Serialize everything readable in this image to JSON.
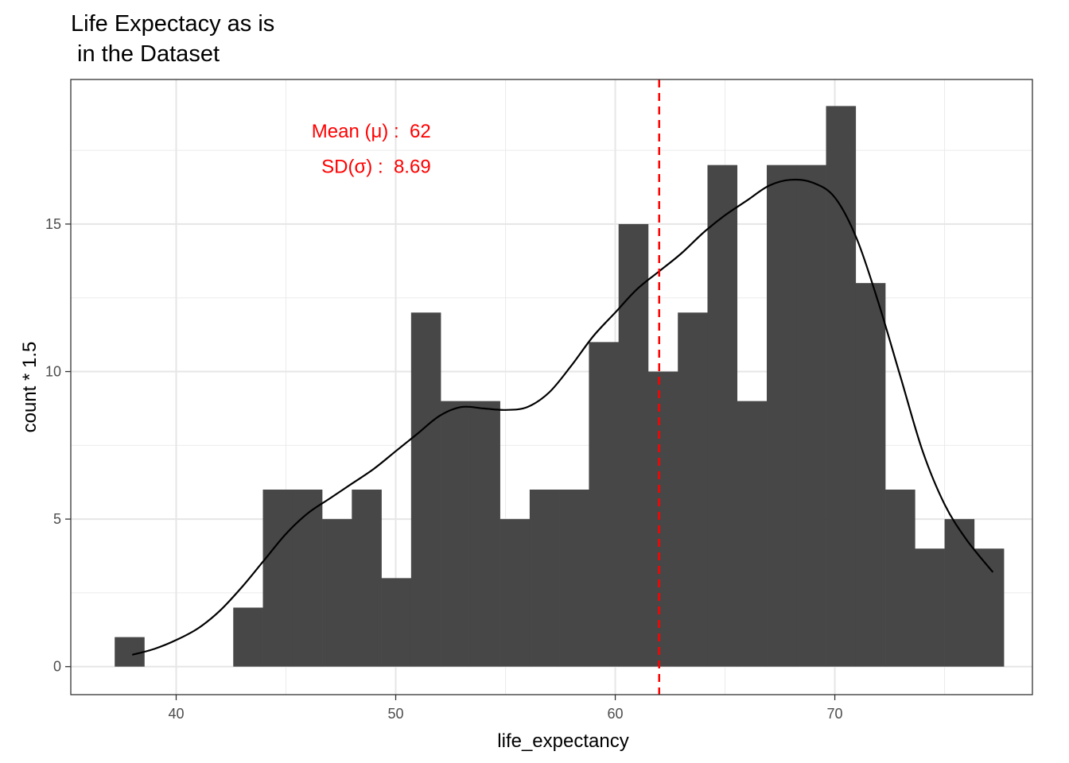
{
  "chart_data": {
    "type": "histogram",
    "title": [
      "Life Expectacy as is",
      " in the Dataset"
    ],
    "xlabel": "life_expectancy",
    "ylabel": "count * 1.5",
    "xlim": [
      35.2,
      79.0
    ],
    "ylim": [
      -0.95,
      19.9
    ],
    "x_ticks": [
      40,
      50,
      60,
      70
    ],
    "x_minor_ticks": [
      45,
      55,
      65,
      75
    ],
    "y_ticks": [
      0,
      5,
      10,
      15
    ],
    "y_minor_ticks": [
      2.5,
      7.5,
      12.5,
      17.5
    ],
    "grid": true,
    "bar_color": "#474747",
    "bins": {
      "start": 37.2,
      "width": 1.35,
      "counts": [
        1,
        0,
        0,
        0,
        2,
        6,
        6,
        5,
        6,
        3,
        12,
        9,
        9,
        5,
        6,
        6,
        11,
        15,
        10,
        12,
        17,
        9,
        17,
        17,
        19,
        13,
        6,
        4,
        5,
        4
      ]
    },
    "density_curve": {
      "color": "#000000",
      "x": [
        38.0,
        39.0,
        40.0,
        41.0,
        42.0,
        43.0,
        44.0,
        45.0,
        46.0,
        47.0,
        48.0,
        49.0,
        50.0,
        51.0,
        52.0,
        53.0,
        54.0,
        55.0,
        56.0,
        57.0,
        58.0,
        59.0,
        60.0,
        61.0,
        62.0,
        63.0,
        64.0,
        65.0,
        66.0,
        67.0,
        68.0,
        69.0,
        70.0,
        71.0,
        72.0,
        73.0,
        74.0,
        75.0,
        76.0,
        77.2
      ],
      "y": [
        0.4,
        0.6,
        0.9,
        1.3,
        1.9,
        2.7,
        3.6,
        4.5,
        5.2,
        5.7,
        6.2,
        6.7,
        7.3,
        7.9,
        8.5,
        8.8,
        8.75,
        8.7,
        8.8,
        9.3,
        10.2,
        11.2,
        12.0,
        12.8,
        13.4,
        14.0,
        14.7,
        15.3,
        15.8,
        16.3,
        16.5,
        16.4,
        15.9,
        14.5,
        12.3,
        9.8,
        7.3,
        5.5,
        4.3,
        3.2
      ]
    },
    "mean_line": {
      "x": 62,
      "color": "#ff0000",
      "style": "dashed"
    },
    "annotation": {
      "lines": [
        "Mean (μ) :  62",
        "SD(σ) :  8.69"
      ],
      "x": 51.6,
      "y": [
        17.93,
        16.74
      ],
      "anchor": "end",
      "color": "#ff0000"
    }
  }
}
